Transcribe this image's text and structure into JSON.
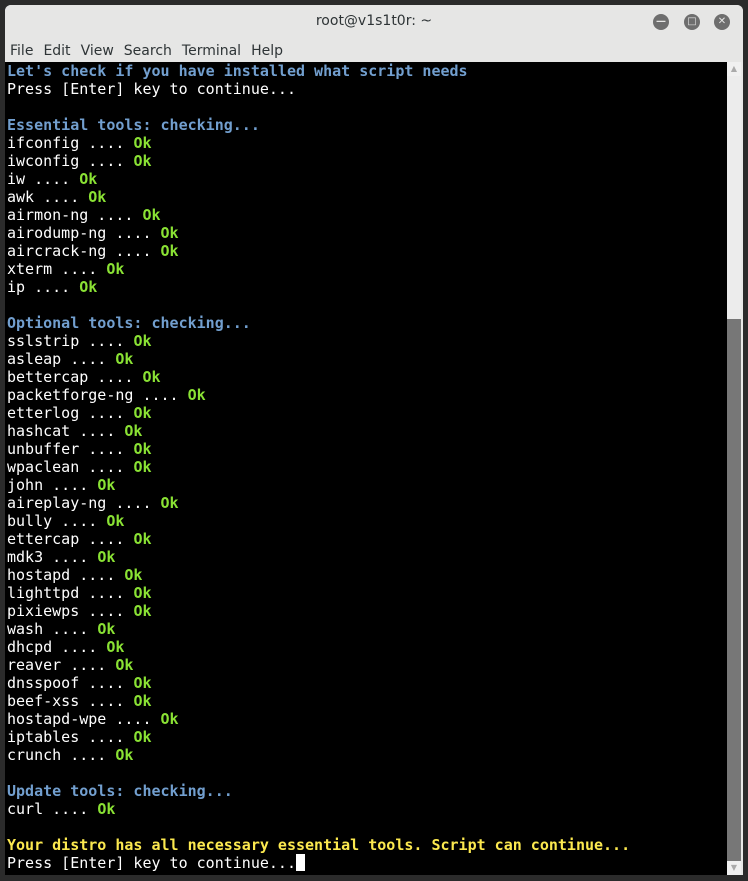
{
  "window": {
    "title": "root@v1s1t0r: ~"
  },
  "menu": [
    "File",
    "Edit",
    "View",
    "Search",
    "Terminal",
    "Help"
  ],
  "scrollbar": {
    "position_fraction": 1.0,
    "visible_fraction": 0.69
  },
  "colors": {
    "heading": "#729fcf",
    "ok": "#8ae234",
    "notice": "#fce94f",
    "text": "#ffffff",
    "background": "#000000"
  },
  "terminal": {
    "lines": [
      [
        {
          "t": "Let's check if you have installed what script needs",
          "c": "blue"
        }
      ],
      [
        {
          "t": "Press [Enter] key to continue...",
          "c": ""
        }
      ],
      [],
      [
        {
          "t": "Essential tools: checking...",
          "c": "blue"
        }
      ],
      [
        {
          "t": "ifconfig .... ",
          "c": ""
        },
        {
          "t": "Ok",
          "c": "green"
        }
      ],
      [
        {
          "t": "iwconfig .... ",
          "c": ""
        },
        {
          "t": "Ok",
          "c": "green"
        }
      ],
      [
        {
          "t": "iw .... ",
          "c": ""
        },
        {
          "t": "Ok",
          "c": "green"
        }
      ],
      [
        {
          "t": "awk .... ",
          "c": ""
        },
        {
          "t": "Ok",
          "c": "green"
        }
      ],
      [
        {
          "t": "airmon-ng .... ",
          "c": ""
        },
        {
          "t": "Ok",
          "c": "green"
        }
      ],
      [
        {
          "t": "airodump-ng .... ",
          "c": ""
        },
        {
          "t": "Ok",
          "c": "green"
        }
      ],
      [
        {
          "t": "aircrack-ng .... ",
          "c": ""
        },
        {
          "t": "Ok",
          "c": "green"
        }
      ],
      [
        {
          "t": "xterm .... ",
          "c": ""
        },
        {
          "t": "Ok",
          "c": "green"
        }
      ],
      [
        {
          "t": "ip .... ",
          "c": ""
        },
        {
          "t": "Ok",
          "c": "green"
        }
      ],
      [],
      [
        {
          "t": "Optional tools: checking...",
          "c": "blue"
        }
      ],
      [
        {
          "t": "sslstrip .... ",
          "c": ""
        },
        {
          "t": "Ok",
          "c": "green"
        }
      ],
      [
        {
          "t": "asleap .... ",
          "c": ""
        },
        {
          "t": "Ok",
          "c": "green"
        }
      ],
      [
        {
          "t": "bettercap .... ",
          "c": ""
        },
        {
          "t": "Ok",
          "c": "green"
        }
      ],
      [
        {
          "t": "packetforge-ng .... ",
          "c": ""
        },
        {
          "t": "Ok",
          "c": "green"
        }
      ],
      [
        {
          "t": "etterlog .... ",
          "c": ""
        },
        {
          "t": "Ok",
          "c": "green"
        }
      ],
      [
        {
          "t": "hashcat .... ",
          "c": ""
        },
        {
          "t": "Ok",
          "c": "green"
        }
      ],
      [
        {
          "t": "unbuffer .... ",
          "c": ""
        },
        {
          "t": "Ok",
          "c": "green"
        }
      ],
      [
        {
          "t": "wpaclean .... ",
          "c": ""
        },
        {
          "t": "Ok",
          "c": "green"
        }
      ],
      [
        {
          "t": "john .... ",
          "c": ""
        },
        {
          "t": "Ok",
          "c": "green"
        }
      ],
      [
        {
          "t": "aireplay-ng .... ",
          "c": ""
        },
        {
          "t": "Ok",
          "c": "green"
        }
      ],
      [
        {
          "t": "bully .... ",
          "c": ""
        },
        {
          "t": "Ok",
          "c": "green"
        }
      ],
      [
        {
          "t": "ettercap .... ",
          "c": ""
        },
        {
          "t": "Ok",
          "c": "green"
        }
      ],
      [
        {
          "t": "mdk3 .... ",
          "c": ""
        },
        {
          "t": "Ok",
          "c": "green"
        }
      ],
      [
        {
          "t": "hostapd .... ",
          "c": ""
        },
        {
          "t": "Ok",
          "c": "green"
        }
      ],
      [
        {
          "t": "lighttpd .... ",
          "c": ""
        },
        {
          "t": "Ok",
          "c": "green"
        }
      ],
      [
        {
          "t": "pixiewps .... ",
          "c": ""
        },
        {
          "t": "Ok",
          "c": "green"
        }
      ],
      [
        {
          "t": "wash .... ",
          "c": ""
        },
        {
          "t": "Ok",
          "c": "green"
        }
      ],
      [
        {
          "t": "dhcpd .... ",
          "c": ""
        },
        {
          "t": "Ok",
          "c": "green"
        }
      ],
      [
        {
          "t": "reaver .... ",
          "c": ""
        },
        {
          "t": "Ok",
          "c": "green"
        }
      ],
      [
        {
          "t": "dnsspoof .... ",
          "c": ""
        },
        {
          "t": "Ok",
          "c": "green"
        }
      ],
      [
        {
          "t": "beef-xss .... ",
          "c": ""
        },
        {
          "t": "Ok",
          "c": "green"
        }
      ],
      [
        {
          "t": "hostapd-wpe .... ",
          "c": ""
        },
        {
          "t": "Ok",
          "c": "green"
        }
      ],
      [
        {
          "t": "iptables .... ",
          "c": ""
        },
        {
          "t": "Ok",
          "c": "green"
        }
      ],
      [
        {
          "t": "crunch .... ",
          "c": ""
        },
        {
          "t": "Ok",
          "c": "green"
        }
      ],
      [],
      [
        {
          "t": "Update tools: checking...",
          "c": "blue"
        }
      ],
      [
        {
          "t": "curl .... ",
          "c": ""
        },
        {
          "t": "Ok",
          "c": "green"
        }
      ],
      [],
      [
        {
          "t": "Your distro has all necessary essential tools. Script can continue...",
          "c": "yellow"
        }
      ],
      [
        {
          "t": "Press [Enter] key to continue...",
          "c": ""
        }
      ]
    ]
  }
}
